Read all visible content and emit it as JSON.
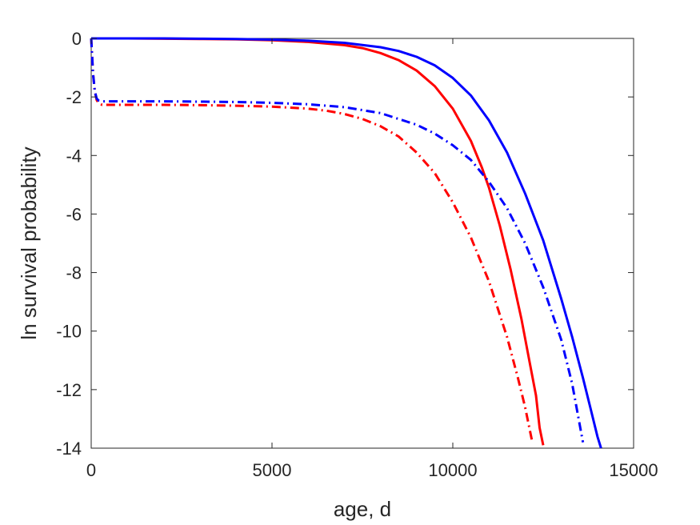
{
  "chart_data": {
    "type": "line",
    "title": "",
    "xlabel": "age, d",
    "ylabel": "ln survival probability",
    "xlim": [
      0,
      15000
    ],
    "ylim": [
      -14,
      0
    ],
    "xticks": [
      0,
      5000,
      10000,
      15000
    ],
    "yticks": [
      0,
      -2,
      -4,
      -6,
      -8,
      -10,
      -12,
      -14
    ],
    "grid": false,
    "legend": "none",
    "series": [
      {
        "color": "#ff0000",
        "dash": "solid",
        "x": [
          0,
          1000,
          2000,
          3000,
          4000,
          5000,
          6000,
          7000,
          7500,
          8000,
          8500,
          9000,
          9500,
          10000,
          10500,
          10800,
          11000,
          11300,
          11600,
          11900,
          12100,
          12300,
          12400,
          12500
        ],
        "y": [
          0,
          0,
          -0.01,
          -0.02,
          -0.03,
          -0.06,
          -0.12,
          -0.23,
          -0.33,
          -0.5,
          -0.74,
          -1.1,
          -1.63,
          -2.4,
          -3.5,
          -4.4,
          -5.1,
          -6.4,
          -7.9,
          -9.6,
          -10.9,
          -12.2,
          -13.3,
          -13.9
        ]
      },
      {
        "color": "#0000ff",
        "dash": "solid",
        "x": [
          0,
          1000,
          2000,
          3000,
          4000,
          5000,
          6000,
          7000,
          8000,
          8500,
          9000,
          9500,
          10000,
          10500,
          11000,
          11500,
          12000,
          12500,
          13000,
          13300,
          13600,
          13800,
          14000,
          14100
        ],
        "y": [
          0,
          0,
          0,
          -0.01,
          -0.02,
          -0.04,
          -0.08,
          -0.15,
          -0.3,
          -0.43,
          -0.63,
          -0.92,
          -1.35,
          -1.95,
          -2.8,
          -3.9,
          -5.3,
          -6.9,
          -8.9,
          -10.2,
          -11.6,
          -12.6,
          -13.6,
          -14
        ]
      },
      {
        "color": "#ff0000",
        "dash": "dashdot",
        "x": [
          0,
          50,
          100,
          150,
          200,
          300,
          1000,
          2000,
          3000,
          4000,
          5000,
          6000,
          6500,
          7000,
          7500,
          8000,
          8500,
          9000,
          9500,
          10000,
          10500,
          11000,
          11500,
          11800,
          12000,
          12200
        ],
        "y": [
          0,
          -1.2,
          -1.8,
          -2.1,
          -2.2,
          -2.27,
          -2.27,
          -2.27,
          -2.28,
          -2.3,
          -2.33,
          -2.4,
          -2.47,
          -2.58,
          -2.75,
          -3.0,
          -3.35,
          -3.9,
          -4.6,
          -5.6,
          -6.8,
          -8.3,
          -10.2,
          -11.6,
          -12.6,
          -13.8
        ]
      },
      {
        "color": "#0000ff",
        "dash": "dashdot",
        "x": [
          0,
          50,
          100,
          150,
          200,
          300,
          1000,
          2000,
          3000,
          4000,
          5000,
          6000,
          7000,
          8000,
          9000,
          9500,
          10000,
          10500,
          11000,
          11500,
          12000,
          12500,
          13000,
          13300,
          13600
        ],
        "y": [
          0,
          -1.2,
          -1.8,
          -2.05,
          -2.12,
          -2.15,
          -2.15,
          -2.15,
          -2.16,
          -2.17,
          -2.2,
          -2.25,
          -2.35,
          -2.55,
          -2.95,
          -3.25,
          -3.65,
          -4.15,
          -4.9,
          -5.8,
          -7.0,
          -8.5,
          -10.3,
          -11.8,
          -13.8
        ]
      }
    ]
  }
}
